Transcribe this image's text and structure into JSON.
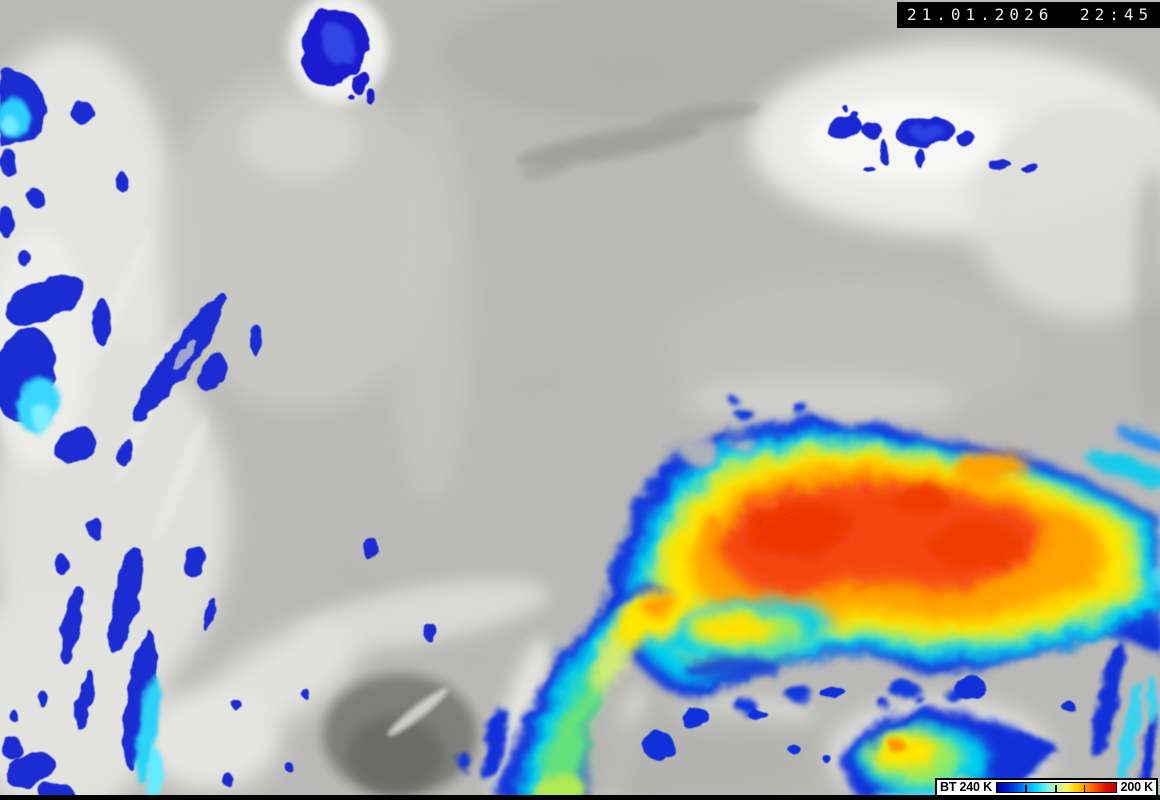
{
  "scene": {
    "timestamp": "21.01.2026 22:45"
  },
  "legend": {
    "label_left": "BT 240 K",
    "label_right": "200 K",
    "scale_colors": [
      "#0000a0",
      "#0018cc",
      "#0050f0",
      "#00a0ff",
      "#10d8ff",
      "#70f0e8",
      "#c0f8a0",
      "#fff460",
      "#ffd000",
      "#ff9000",
      "#ff4800",
      "#e01000",
      "#c80000"
    ],
    "tick_positions_pct": [
      24,
      49,
      73
    ]
  }
}
